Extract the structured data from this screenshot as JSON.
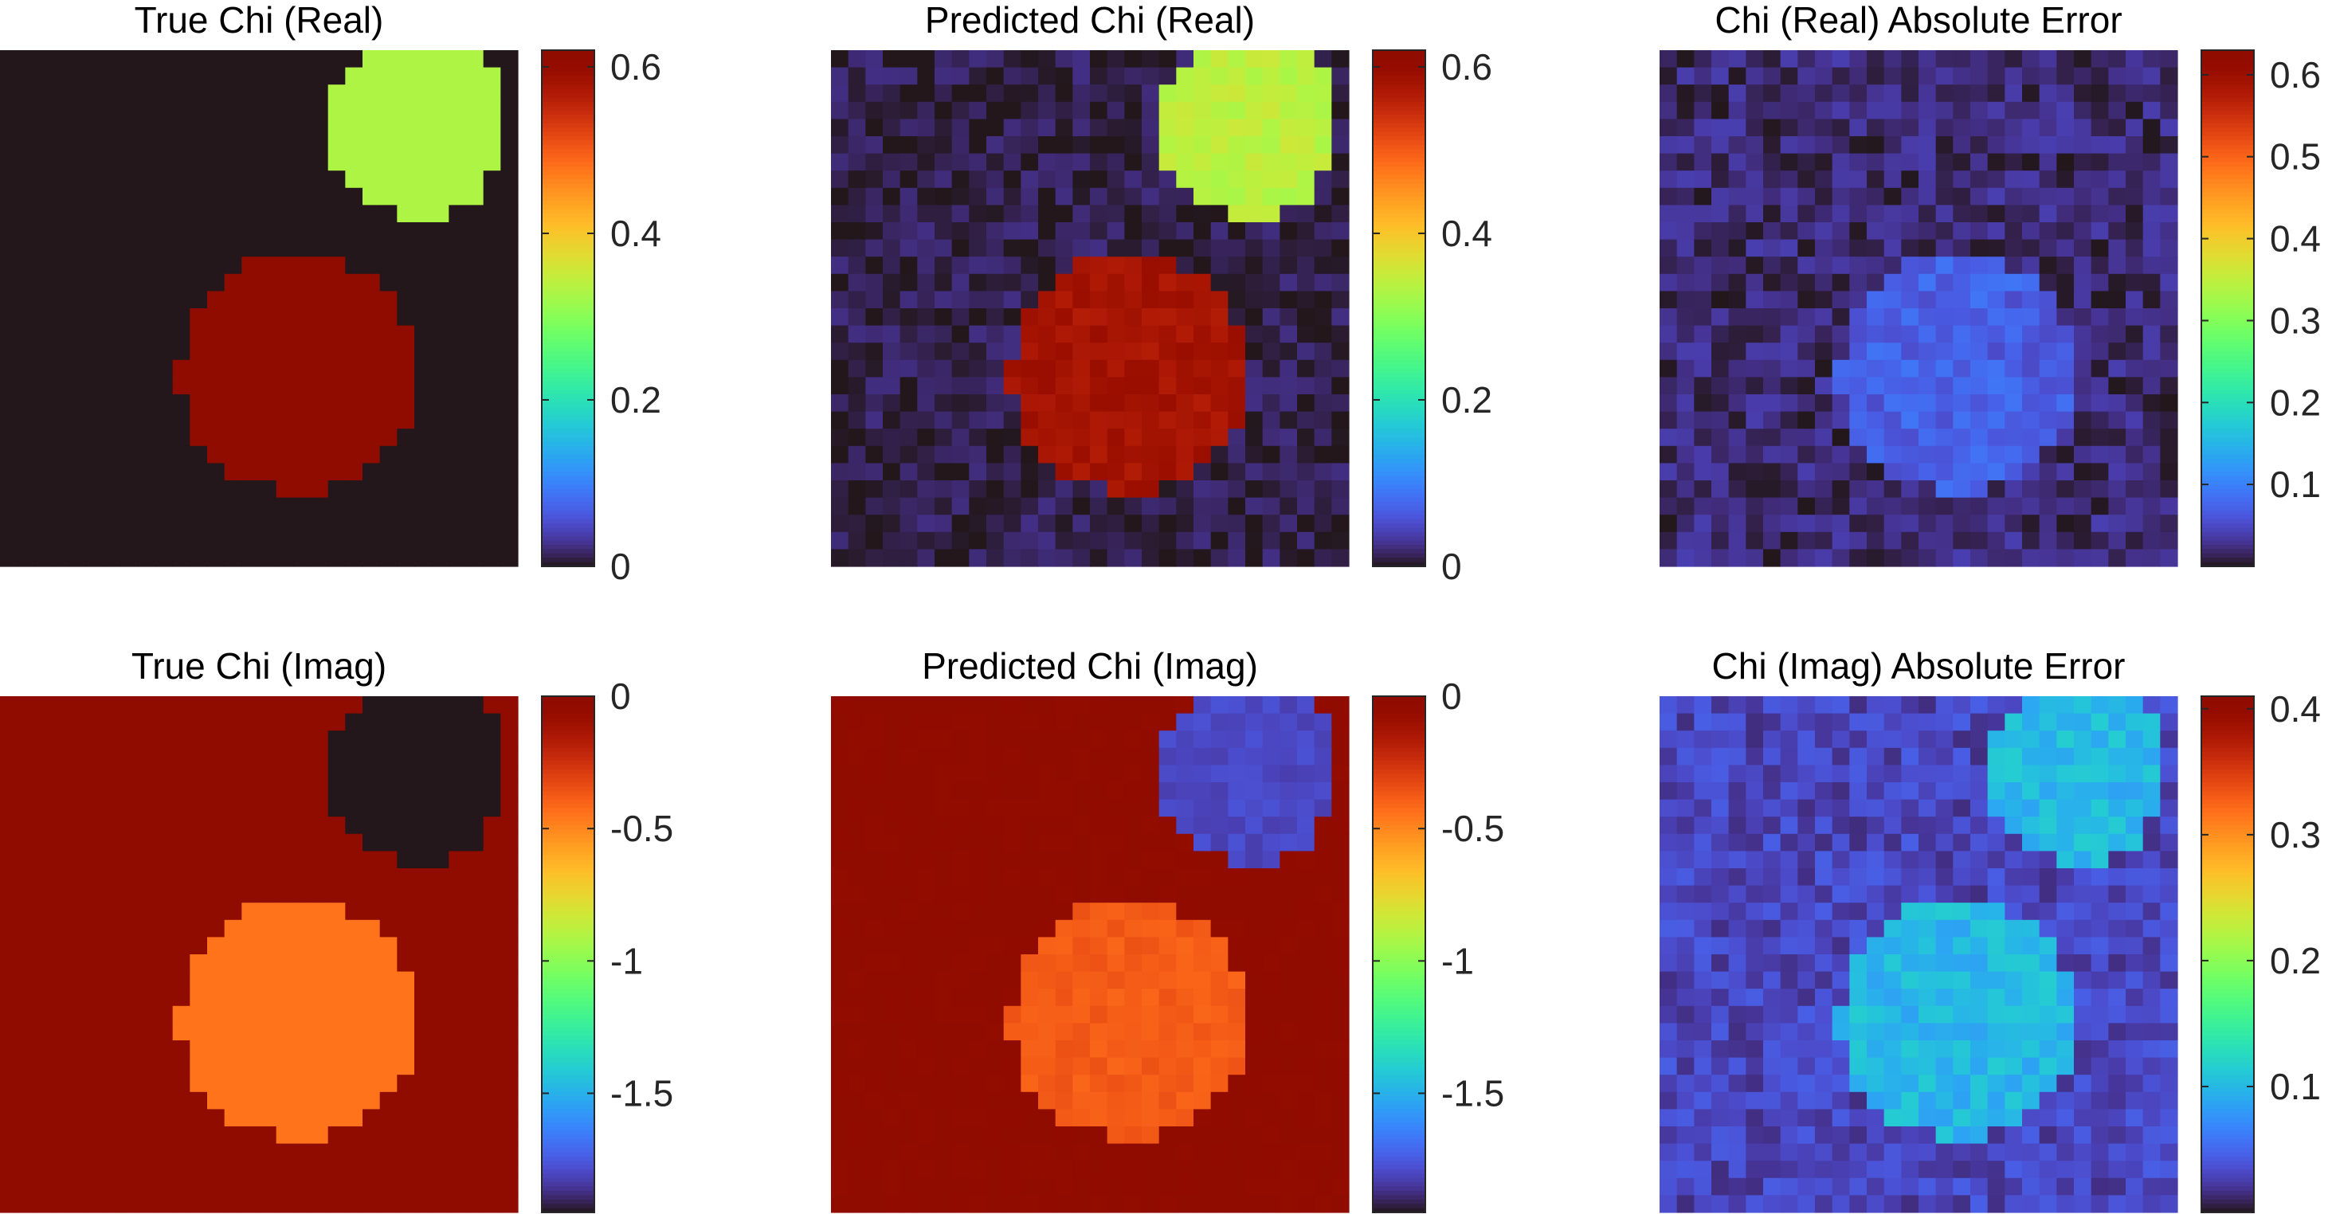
{
  "chart_data": [
    {
      "type": "heatmap",
      "title": "True Chi (Real)",
      "colormap": "turbo",
      "clim": [
        0,
        0.62
      ],
      "colorbar_ticks": [
        "0",
        "0.2",
        "0.4",
        "0.6"
      ],
      "colorbar_tick_values": [
        0,
        0.2,
        0.4,
        0.6
      ],
      "grid": [
        30,
        30
      ],
      "background_value": 0,
      "regions": [
        {
          "shape": "disk",
          "center_col": 24.2,
          "center_row": 4.4,
          "radius": 5.3,
          "value": 0.33
        },
        {
          "shape": "disk",
          "center_col": 17.3,
          "center_row": 18.8,
          "radius": 6.9,
          "value": 0.62
        }
      ]
    },
    {
      "type": "heatmap",
      "title": "Predicted Chi (Real)",
      "colormap": "turbo",
      "clim": [
        0,
        0.62
      ],
      "colorbar_ticks": [
        "0",
        "0.2",
        "0.4",
        "0.6"
      ],
      "colorbar_tick_values": [
        0,
        0.2,
        0.4,
        0.6
      ],
      "grid": [
        30,
        30
      ],
      "background_value": 0.01,
      "regions": [
        {
          "shape": "disk",
          "center_col": 24.2,
          "center_row": 4.4,
          "radius": 5.3,
          "value": 0.34
        },
        {
          "shape": "disk",
          "center_col": 17.3,
          "center_row": 18.8,
          "radius": 6.9,
          "value": 0.58
        }
      ],
      "noise": 0.015
    },
    {
      "type": "heatmap",
      "title": "Chi (Real) Absolute Error",
      "colormap": "turbo",
      "clim": [
        0,
        0.63
      ],
      "colorbar_ticks": [
        "0.1",
        "0.2",
        "0.3",
        "0.4",
        "0.5",
        "0.6"
      ],
      "colorbar_tick_values": [
        0.1,
        0.2,
        0.3,
        0.4,
        0.5,
        0.6
      ],
      "grid": [
        30,
        30
      ],
      "background_value": 0.02,
      "regions": [
        {
          "shape": "disk",
          "center_col": 17.3,
          "center_row": 18.8,
          "radius": 6.9,
          "value": 0.07
        }
      ],
      "noise": 0.02
    },
    {
      "type": "heatmap",
      "title": "True Chi (Imag)",
      "colormap": "turbo",
      "clim": [
        -1.95,
        0
      ],
      "colorbar_ticks": [
        "0",
        "-0.5",
        "-1",
        "-1.5"
      ],
      "colorbar_tick_values": [
        0,
        -0.5,
        -1,
        -1.5
      ],
      "grid": [
        30,
        30
      ],
      "background_value": 0,
      "regions": [
        {
          "shape": "disk",
          "center_col": 24.2,
          "center_row": 4.4,
          "radius": 5.3,
          "value": -1.95
        },
        {
          "shape": "disk",
          "center_col": 17.3,
          "center_row": 18.8,
          "radius": 6.9,
          "value": -0.45
        }
      ]
    },
    {
      "type": "heatmap",
      "title": "Predicted Chi (Imag)",
      "colormap": "turbo",
      "clim": [
        -1.95,
        0
      ],
      "colorbar_ticks": [
        "0",
        "-0.5",
        "-1",
        "-1.5"
      ],
      "colorbar_tick_values": [
        0,
        -0.5,
        -1,
        -1.5
      ],
      "grid": [
        30,
        30
      ],
      "background_value": -0.02,
      "regions": [
        {
          "shape": "disk",
          "center_col": 24.2,
          "center_row": 4.4,
          "radius": 5.3,
          "value": -1.8
        },
        {
          "shape": "disk",
          "center_col": 17.3,
          "center_row": 18.8,
          "radius": 6.9,
          "value": -0.38
        }
      ],
      "noise": 0.03
    },
    {
      "type": "heatmap",
      "title": "Chi (Imag) Absolute Error",
      "colormap": "turbo",
      "clim": [
        0,
        0.41
      ],
      "colorbar_ticks": [
        "0.1",
        "0.2",
        "0.3",
        "0.4"
      ],
      "colorbar_tick_values": [
        0.1,
        0.2,
        0.3,
        0.4
      ],
      "grid": [
        30,
        30
      ],
      "background_value": 0.03,
      "regions": [
        {
          "shape": "disk",
          "center_col": 24.2,
          "center_row": 4.4,
          "radius": 5.3,
          "value": 0.1
        },
        {
          "shape": "disk",
          "center_col": 17.3,
          "center_row": 18.8,
          "radius": 6.9,
          "value": 0.1
        }
      ],
      "noise": 0.015
    }
  ]
}
